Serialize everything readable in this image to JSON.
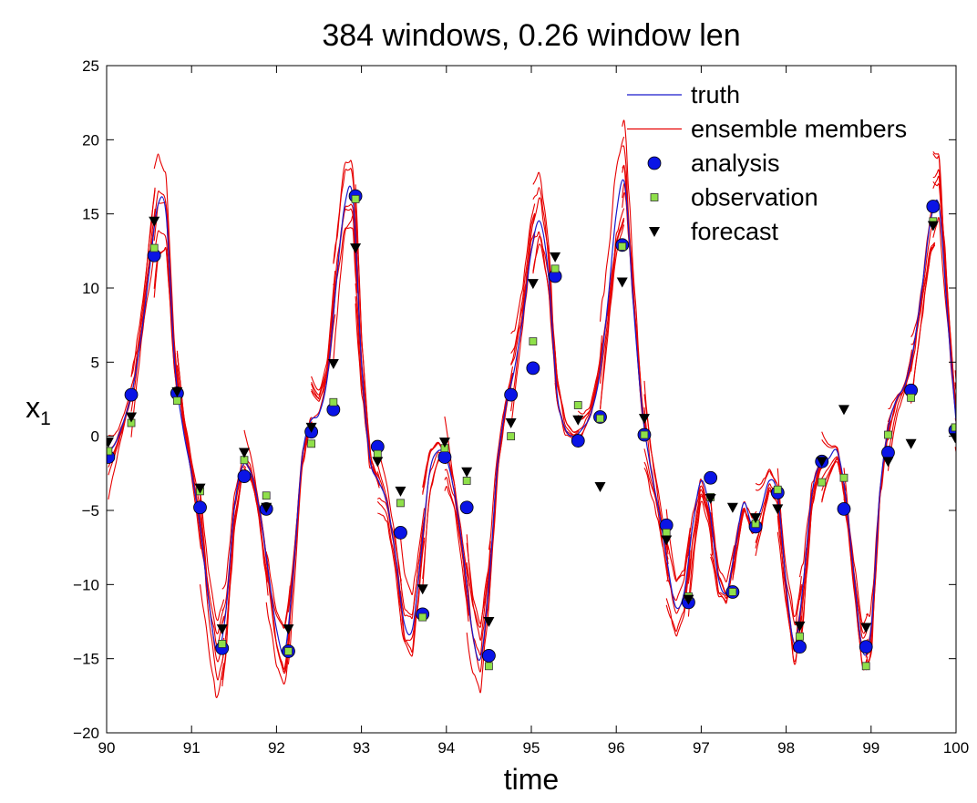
{
  "chart_data": {
    "type": "line",
    "title": "384 windows, 0.26 window len",
    "xlabel": "time",
    "ylabel": "x",
    "ylabel_subscript": "1",
    "xlim": [
      90,
      100
    ],
    "ylim": [
      -20,
      25
    ],
    "xticks": [
      90,
      91,
      92,
      93,
      94,
      95,
      96,
      97,
      98,
      99,
      100
    ],
    "yticks": [
      -20,
      -15,
      -10,
      -5,
      0,
      5,
      10,
      15,
      20,
      25
    ],
    "grid": false,
    "legend_position": "top-right",
    "colors": {
      "truth": "#1a1acc",
      "ensemble": "#e60000",
      "analysis": "#0a14e6",
      "observation": "#8fe04a",
      "forecast": "#000000"
    },
    "series": [
      {
        "name": "truth",
        "style": "line",
        "x": [
          90.0,
          90.1,
          90.2,
          90.3,
          90.4,
          90.5,
          90.6,
          90.7,
          90.8,
          90.9,
          91.0,
          91.1,
          91.2,
          91.3,
          91.4,
          91.5,
          91.6,
          91.7,
          91.8,
          91.9,
          92.0,
          92.1,
          92.2,
          92.3,
          92.4,
          92.5,
          92.6,
          92.7,
          92.8,
          92.9,
          93.0,
          93.1,
          93.2,
          93.3,
          93.4,
          93.5,
          93.6,
          93.7,
          93.8,
          93.9,
          94.0,
          94.1,
          94.2,
          94.3,
          94.4,
          94.5,
          94.6,
          94.7,
          94.8,
          94.9,
          95.0,
          95.1,
          95.2,
          95.3,
          95.4,
          95.5,
          95.6,
          95.7,
          95.8,
          95.9,
          96.0,
          96.1,
          96.2,
          96.3,
          96.4,
          96.5,
          96.6,
          96.7,
          96.8,
          96.9,
          97.0,
          97.1,
          97.2,
          97.3,
          97.4,
          97.5,
          97.6,
          97.7,
          97.8,
          97.9,
          98.0,
          98.1,
          98.2,
          98.3,
          98.4,
          98.5,
          98.6,
          98.7,
          98.8,
          98.9,
          99.0,
          99.1,
          99.2,
          99.3,
          99.4,
          99.5,
          99.6,
          99.7,
          99.8,
          99.9,
          100.0
        ],
        "y": [
          -1.2,
          -0.5,
          1.0,
          3.0,
          6.5,
          11.0,
          15.5,
          15.0,
          5.0,
          0.5,
          -2.5,
          -6.0,
          -11.0,
          -14.5,
          -12.0,
          -5.0,
          -2.0,
          -2.5,
          -5.0,
          -9.0,
          -13.0,
          -14.5,
          -9.0,
          -1.5,
          1.0,
          1.5,
          4.0,
          10.0,
          15.5,
          16.0,
          5.0,
          -1.5,
          -3.0,
          -4.5,
          -8.0,
          -12.5,
          -13.0,
          -8.0,
          -2.5,
          -1.0,
          -1.5,
          -4.0,
          -8.0,
          -13.0,
          -15.0,
          -10.0,
          -2.0,
          2.0,
          4.5,
          8.0,
          12.5,
          14.5,
          11.0,
          3.0,
          0.5,
          0.0,
          0.5,
          1.5,
          4.0,
          9.0,
          15.0,
          17.0,
          9.0,
          2.0,
          -2.0,
          -5.0,
          -8.5,
          -11.5,
          -10.5,
          -6.0,
          -3.0,
          -5.0,
          -9.5,
          -10.5,
          -7.5,
          -4.5,
          -6.0,
          -5.0,
          -3.0,
          -4.0,
          -10.0,
          -14.0,
          -10.0,
          -4.0,
          -1.8,
          -1.5,
          -1.0,
          -4.0,
          -9.5,
          -14.5,
          -13.0,
          -4.0,
          0.5,
          2.5,
          3.5,
          6.0,
          10.0,
          14.5,
          15.5,
          8.0,
          1.0
        ]
      },
      {
        "name": "analysis",
        "style": "marker-circle",
        "x": [
          90.02,
          90.29,
          90.56,
          90.83,
          91.1,
          91.36,
          91.62,
          91.88,
          92.14,
          92.41,
          92.67,
          92.93,
          93.19,
          93.46,
          93.72,
          93.98,
          94.24,
          94.5,
          94.76,
          95.02,
          95.28,
          95.55,
          95.81,
          96.07,
          96.33,
          96.59,
          96.85,
          97.11,
          97.37,
          97.64,
          97.9,
          98.16,
          98.42,
          98.68,
          98.94,
          99.2,
          99.47,
          99.73,
          99.99
        ],
        "y": [
          -1.4,
          2.8,
          12.2,
          2.9,
          -4.8,
          -14.3,
          -2.7,
          -4.9,
          -14.5,
          0.3,
          1.8,
          16.2,
          -0.7,
          -6.5,
          -12.0,
          -1.4,
          -4.8,
          -14.8,
          2.8,
          4.6,
          10.8,
          -0.3,
          1.3,
          12.9,
          0.1,
          -6.0,
          -11.2,
          -2.8,
          -10.5,
          -6.1,
          -3.8,
          -14.2,
          -1.7,
          -4.9,
          -14.2,
          -1.1,
          3.1,
          15.5,
          0.4
        ]
      },
      {
        "name": "observation",
        "style": "marker-square",
        "x": [
          90.02,
          90.29,
          90.56,
          90.83,
          91.1,
          91.36,
          91.62,
          91.88,
          92.14,
          92.41,
          92.67,
          92.93,
          93.19,
          93.46,
          93.72,
          93.98,
          94.24,
          94.5,
          94.76,
          95.02,
          95.28,
          95.55,
          95.81,
          96.07,
          96.33,
          96.59,
          96.85,
          97.11,
          97.37,
          97.64,
          97.9,
          98.16,
          98.42,
          98.68,
          98.94,
          99.2,
          99.47,
          99.73,
          99.99
        ],
        "y": [
          -1.0,
          0.9,
          12.7,
          2.4,
          -3.7,
          -14.0,
          -1.6,
          -4.0,
          -14.5,
          -0.5,
          2.3,
          16.0,
          -1.2,
          -4.5,
          -12.2,
          -0.8,
          -3.0,
          -15.5,
          0.0,
          6.4,
          11.3,
          2.1,
          1.2,
          12.8,
          0.1,
          -6.5,
          -10.8,
          -4.1,
          -10.5,
          -5.9,
          -3.6,
          -13.5,
          -3.1,
          -2.8,
          -15.5,
          0.1,
          2.6,
          14.5,
          0.6
        ]
      },
      {
        "name": "forecast",
        "style": "marker-triangle",
        "x": [
          90.02,
          90.29,
          90.56,
          90.83,
          91.1,
          91.36,
          91.62,
          91.88,
          92.14,
          92.41,
          92.67,
          92.93,
          93.19,
          93.46,
          93.72,
          93.98,
          94.24,
          94.5,
          94.76,
          95.02,
          95.28,
          95.55,
          95.81,
          96.07,
          96.33,
          96.59,
          96.85,
          97.11,
          97.37,
          97.64,
          97.9,
          98.16,
          98.42,
          98.68,
          98.94,
          99.2,
          99.47,
          99.73,
          99.99
        ],
        "y": [
          -0.4,
          1.3,
          14.5,
          3.0,
          -3.5,
          -13.0,
          -1.1,
          -4.8,
          -13.0,
          0.6,
          4.9,
          12.7,
          -1.7,
          -3.7,
          -10.3,
          -0.4,
          -2.4,
          -12.5,
          0.9,
          10.3,
          12.1,
          1.1,
          -3.4,
          10.4,
          1.2,
          -7.0,
          -11.0,
          -4.2,
          -4.8,
          -5.5,
          -4.9,
          -12.8,
          -1.7,
          1.8,
          -12.9,
          -1.7,
          -0.5,
          14.2,
          -0.1
        ]
      },
      {
        "name": "ensemble members",
        "style": "line",
        "x": [
          90.02,
          90.29,
          90.56,
          90.83,
          91.1,
          91.36,
          91.62,
          91.88,
          92.14,
          92.41,
          92.67,
          92.93,
          93.19,
          93.46,
          93.72,
          93.98,
          94.24,
          94.5,
          94.76,
          95.02,
          95.28,
          95.55,
          95.81,
          96.07,
          96.33,
          96.59,
          96.85,
          97.11,
          97.37,
          97.64,
          97.9,
          98.16,
          98.42,
          98.68,
          98.94,
          99.2,
          99.47,
          99.73,
          99.99
        ],
        "y": [
          -1.4,
          2.8,
          12.2,
          2.9,
          -4.8,
          -14.3,
          -2.7,
          -4.9,
          -14.5,
          0.3,
          1.8,
          16.2,
          -0.7,
          -6.5,
          -12.0,
          -1.4,
          -4.8,
          -14.8,
          2.8,
          4.6,
          10.8,
          -0.3,
          1.3,
          12.9,
          0.1,
          -6.0,
          -11.2,
          -2.8,
          -10.5,
          -6.1,
          -3.8,
          -14.2,
          -1.7,
          -4.9,
          -14.2,
          -1.1,
          3.1,
          15.5,
          0.4
        ]
      }
    ]
  }
}
